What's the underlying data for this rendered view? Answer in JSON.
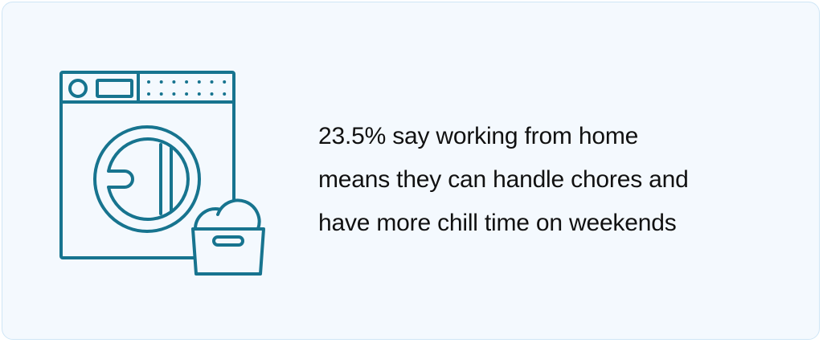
{
  "icon": {
    "name": "washing-machine-with-laundry-basket-icon",
    "color": "#17748f"
  },
  "statement": {
    "lines": [
      "23.5% say working from home",
      "means they can handle chores and",
      "have more chill time on weekends"
    ]
  },
  "colors": {
    "background": "#f4f9fe",
    "border": "#cfe6f6",
    "text": "#111111"
  }
}
